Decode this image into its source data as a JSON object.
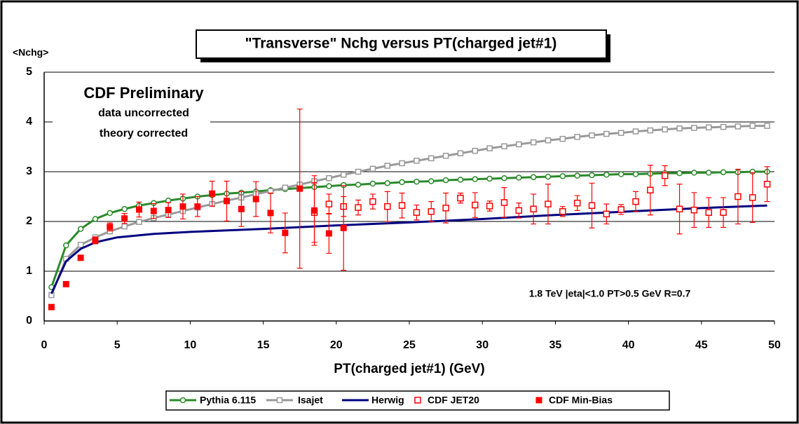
{
  "chart_data": {
    "type": "line",
    "title": "\"Transverse\" Nchg versus PT(charged jet#1)",
    "y_label": "<Nchg>",
    "x_label": "PT(charged jet#1)  (GeV)",
    "annotations": [
      "CDF Preliminary",
      "data uncorrected",
      "theory corrected",
      "1.8 TeV |eta|<1.0 PT>0.5 GeV  R=0.7"
    ],
    "xlim": [
      0,
      50
    ],
    "xticks": [
      0,
      5,
      10,
      15,
      20,
      25,
      30,
      35,
      40,
      45,
      50
    ],
    "ylim": [
      0,
      5
    ],
    "yticks": [
      0,
      1,
      2,
      3,
      4,
      5
    ],
    "grid": true,
    "series": [
      {
        "name": "Pythia 6.115",
        "color": "#2a8a2a",
        "line": true,
        "marker": "circle",
        "x": [
          0.5,
          1.5,
          2.5,
          3.5,
          4.5,
          5.5,
          6.5,
          7.5,
          8.5,
          9.5,
          10.5,
          11.5,
          12.5,
          13.5,
          14.5,
          15.5,
          16.5,
          17.5,
          18.5,
          19.5,
          20.5,
          21.5,
          22.5,
          23.5,
          24.5,
          25.5,
          26.5,
          27.5,
          28.5,
          29.5,
          30.5,
          31.5,
          32.5,
          33.5,
          34.5,
          35.5,
          36.5,
          37.5,
          38.5,
          39.5,
          40.5,
          41.5,
          42.5,
          43.5,
          44.5,
          45.5,
          46.5,
          47.5,
          48.5,
          49.5
        ],
        "values": [
          0.68,
          1.52,
          1.85,
          2.05,
          2.17,
          2.25,
          2.32,
          2.37,
          2.42,
          2.46,
          2.5,
          2.53,
          2.56,
          2.58,
          2.6,
          2.63,
          2.65,
          2.67,
          2.69,
          2.71,
          2.73,
          2.74,
          2.76,
          2.77,
          2.79,
          2.8,
          2.81,
          2.83,
          2.84,
          2.85,
          2.86,
          2.87,
          2.88,
          2.89,
          2.9,
          2.91,
          2.92,
          2.93,
          2.94,
          2.95,
          2.95,
          2.96,
          2.97,
          2.97,
          2.98,
          2.98,
          2.99,
          2.99,
          3.0,
          3.0
        ]
      },
      {
        "name": "Isajet",
        "color": "#999999",
        "line": true,
        "marker": "square",
        "x": [
          0.5,
          1.5,
          2.5,
          3.5,
          4.5,
          5.5,
          6.5,
          7.5,
          8.5,
          9.5,
          10.5,
          11.5,
          12.5,
          13.5,
          14.5,
          15.5,
          16.5,
          17.5,
          18.5,
          19.5,
          20.5,
          21.5,
          22.5,
          23.5,
          24.5,
          25.5,
          26.5,
          27.5,
          28.5,
          29.5,
          30.5,
          31.5,
          32.5,
          33.5,
          34.5,
          35.5,
          36.5,
          37.5,
          38.5,
          39.5,
          40.5,
          41.5,
          42.5,
          43.5,
          44.5,
          45.5,
          46.5,
          47.5,
          48.5,
          49.5
        ],
        "values": [
          0.52,
          1.25,
          1.53,
          1.68,
          1.8,
          1.9,
          1.99,
          2.07,
          2.14,
          2.21,
          2.28,
          2.35,
          2.42,
          2.48,
          2.55,
          2.61,
          2.68,
          2.74,
          2.81,
          2.87,
          2.94,
          3.0,
          3.06,
          3.12,
          3.17,
          3.22,
          3.27,
          3.32,
          3.37,
          3.42,
          3.47,
          3.51,
          3.55,
          3.59,
          3.63,
          3.66,
          3.7,
          3.73,
          3.76,
          3.78,
          3.81,
          3.83,
          3.85,
          3.87,
          3.88,
          3.89,
          3.9,
          3.91,
          3.92,
          3.92
        ]
      },
      {
        "name": "Herwig",
        "color": "#000080",
        "line": true,
        "x": [
          0.5,
          1.5,
          2.5,
          3.5,
          5,
          7.5,
          10,
          15,
          20,
          25,
          30,
          35,
          40,
          45,
          49.5
        ],
        "values": [
          0.55,
          1.2,
          1.45,
          1.58,
          1.68,
          1.75,
          1.79,
          1.85,
          1.92,
          1.98,
          2.05,
          2.13,
          2.2,
          2.27,
          2.32
        ]
      },
      {
        "name": "CDF JET20",
        "color": "#ff0000",
        "line": false,
        "marker": "open-square",
        "x": [
          18.5,
          19.5,
          20.5,
          21.5,
          22.5,
          23.5,
          24.5,
          25.5,
          26.5,
          27.5,
          28.5,
          29.5,
          30.5,
          31.5,
          32.5,
          33.5,
          34.5,
          35.5,
          36.5,
          37.5,
          38.5,
          39.5,
          40.5,
          41.5,
          42.5,
          43.5,
          44.5,
          45.5,
          46.5,
          47.5,
          48.5,
          49.5
        ],
        "values": [
          2.18,
          2.35,
          2.3,
          2.28,
          2.4,
          2.3,
          2.32,
          2.18,
          2.2,
          2.27,
          2.47,
          2.33,
          2.31,
          2.38,
          2.22,
          2.25,
          2.35,
          2.2,
          2.37,
          2.32,
          2.15,
          2.24,
          2.4,
          2.63,
          2.92,
          2.25,
          2.23,
          2.18,
          2.18,
          2.5,
          2.48,
          2.75
        ],
        "errors": [
          0.6,
          0.2,
          0.2,
          0.15,
          0.15,
          0.3,
          0.25,
          0.15,
          0.2,
          0.3,
          0.1,
          0.25,
          0.1,
          0.3,
          0.15,
          0.3,
          0.4,
          0.1,
          0.15,
          0.45,
          0.2,
          0.1,
          0.2,
          0.5,
          0.2,
          0.5,
          0.35,
          0.3,
          0.3,
          0.55,
          0.5,
          0.35
        ]
      },
      {
        "name": "CDF Min-Bias",
        "color": "#ff0000",
        "line": false,
        "marker": "filled-square",
        "x": [
          0.5,
          1.5,
          2.5,
          3.5,
          4.5,
          5.5,
          6.5,
          7.5,
          8.5,
          9.5,
          10.5,
          11.5,
          12.5,
          13.5,
          14.5,
          15.5,
          16.5,
          17.5,
          18.5,
          19.5,
          20.5
        ],
        "values": [
          0.28,
          0.74,
          1.27,
          1.62,
          1.89,
          2.06,
          2.24,
          2.21,
          2.23,
          2.3,
          2.3,
          2.56,
          2.41,
          2.25,
          2.45,
          2.17,
          1.77,
          2.66,
          2.22,
          1.76,
          1.87
        ],
        "errors": [
          0.03,
          0.03,
          0.04,
          0.07,
          0.08,
          0.1,
          0.15,
          0.15,
          0.15,
          0.25,
          0.2,
          0.25,
          0.4,
          0.35,
          0.35,
          0.4,
          0.4,
          1.6,
          0.7,
          0.4,
          0.85
        ]
      }
    ]
  }
}
